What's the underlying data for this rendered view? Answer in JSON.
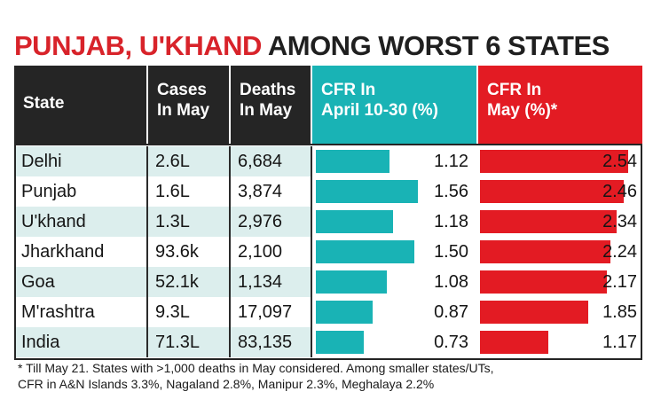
{
  "title": {
    "red_part": "PUNJAB, U'KHAND",
    "dark_part": "AMONG WORST 6 STATES"
  },
  "columns": {
    "state": "State",
    "cases": [
      "Cases",
      "In May"
    ],
    "deaths": [
      "Deaths",
      "In May"
    ],
    "cfr_april": [
      "CFR In",
      "April 10-30 (%)"
    ],
    "cfr_may": [
      "CFR In",
      "May (%)*"
    ]
  },
  "colors": {
    "teal": "#19b3b5",
    "red": "#e31b23",
    "dark": "#252525",
    "row_shade": "#dceeed"
  },
  "chart_data": {
    "type": "table",
    "title": "PUNJAB, U'KHAND AMONG WORST 6 STATES",
    "rows": [
      {
        "state": "Delhi",
        "cases": "2.6L",
        "deaths": "6,684",
        "cfr_april": 1.12,
        "cfr_may": 2.54
      },
      {
        "state": "Punjab",
        "cases": "1.6L",
        "deaths": "3,874",
        "cfr_april": 1.56,
        "cfr_may": 2.46
      },
      {
        "state": "U'khand",
        "cases": "1.3L",
        "deaths": "2,976",
        "cfr_april": 1.18,
        "cfr_may": 2.34
      },
      {
        "state": "Jharkhand",
        "cases": "93.6k",
        "deaths": "2,100",
        "cfr_april": 1.5,
        "cfr_may": 2.24
      },
      {
        "state": "Goa",
        "cases": "52.1k",
        "deaths": "1,134",
        "cfr_april": 1.08,
        "cfr_may": 2.17
      },
      {
        "state": "M'rashtra",
        "cases": "9.3L",
        "deaths": "17,097",
        "cfr_april": 0.87,
        "cfr_may": 1.85
      },
      {
        "state": "India",
        "cases": "71.3L",
        "deaths": "83,135",
        "cfr_april": 0.73,
        "cfr_may": 1.17
      }
    ]
  },
  "footnote": [
    "* Till May 21. States with >1,000 deaths in May considered. Among smaller states/UTs,",
    "CFR in A&N Islands 3.3%, Nagaland 2.8%, Manipur 2.3%, Meghalaya 2.2%"
  ]
}
